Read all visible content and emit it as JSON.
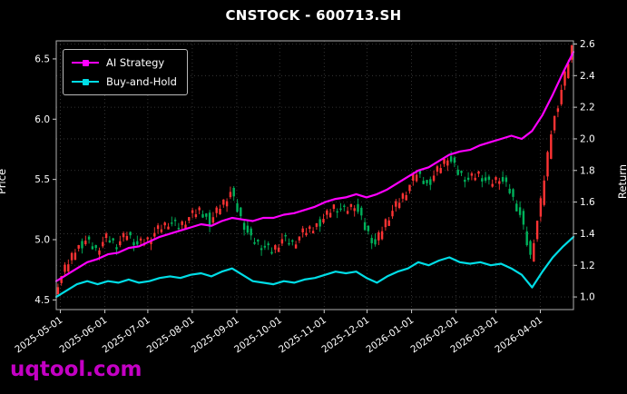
{
  "watermark": "uqtool.com",
  "watermark_color": "#c400c4",
  "axis_labels": {
    "left": "Price",
    "right": "Return"
  },
  "legend": [
    {
      "label": "AI Strategy",
      "color": "#ff00ff"
    },
    {
      "label": "Buy-and-Hold",
      "color": "#00dde6"
    }
  ],
  "chart_data": {
    "type": "line",
    "subtype": "candlestick_price_with_return_lines_overlay",
    "title": "CNSTOCK - 600713.SH",
    "xlabel": "",
    "ylabel_left": "Price",
    "ylabel_right": "Return",
    "ylim_left": [
      4.42,
      6.65
    ],
    "ylim_right": [
      0.92,
      2.62
    ],
    "left_ticks": [
      4.5,
      5.0,
      5.5,
      6.0,
      6.5
    ],
    "right_ticks": [
      1.0,
      1.2,
      1.4,
      1.6,
      1.8,
      2.0,
      2.2,
      2.4,
      2.6
    ],
    "grid": true,
    "grid_color": "#3f3f3f",
    "background": "#000000",
    "legend_position": "upper left",
    "x_ticks": [
      {
        "label": "2025-05-01",
        "pos": 0.008
      },
      {
        "label": "2025-06-01",
        "pos": 0.094
      },
      {
        "label": "2025-07-01",
        "pos": 0.177
      },
      {
        "label": "2025-08-01",
        "pos": 0.263
      },
      {
        "label": "2025-09-01",
        "pos": 0.349
      },
      {
        "label": "2025-10-01",
        "pos": 0.432
      },
      {
        "label": "2025-11-01",
        "pos": 0.518
      },
      {
        "label": "2025-12-01",
        "pos": 0.601
      },
      {
        "label": "2026-01-01",
        "pos": 0.687
      },
      {
        "label": "2026-02-01",
        "pos": 0.773
      },
      {
        "label": "2026-03-01",
        "pos": 0.85
      },
      {
        "label": "2026-04-01",
        "pos": 0.936
      }
    ],
    "candles": {
      "note": "daily OHLC candlesticks; values approximated by weekly close samples read from plot",
      "up_color": "#ff3334",
      "down_color": "#00b25b",
      "weekly_close": [
        4.58,
        4.75,
        4.92,
        5.0,
        4.92,
        5.02,
        4.96,
        5.05,
        4.96,
        5.0,
        5.08,
        5.14,
        5.1,
        5.18,
        5.24,
        5.15,
        5.28,
        5.4,
        5.18,
        5.0,
        4.95,
        4.9,
        5.0,
        4.96,
        5.05,
        5.1,
        5.18,
        5.28,
        5.24,
        5.3,
        5.1,
        4.96,
        5.15,
        5.28,
        5.4,
        5.55,
        5.46,
        5.58,
        5.7,
        5.56,
        5.5,
        5.55,
        5.46,
        5.52,
        5.4,
        5.2,
        4.85,
        5.3,
        5.9,
        6.25,
        6.6
      ]
    },
    "series": [
      {
        "name": "AI Strategy",
        "axis": "right",
        "color": "#ff00ff",
        "values": [
          1.1,
          1.14,
          1.18,
          1.22,
          1.24,
          1.27,
          1.28,
          1.31,
          1.32,
          1.35,
          1.38,
          1.4,
          1.42,
          1.44,
          1.46,
          1.45,
          1.48,
          1.5,
          1.49,
          1.48,
          1.5,
          1.5,
          1.52,
          1.53,
          1.55,
          1.57,
          1.6,
          1.62,
          1.63,
          1.65,
          1.63,
          1.65,
          1.68,
          1.72,
          1.76,
          1.8,
          1.82,
          1.86,
          1.9,
          1.92,
          1.93,
          1.96,
          1.98,
          2.0,
          2.02,
          2.0,
          2.05,
          2.15,
          2.28,
          2.42,
          2.55
        ]
      },
      {
        "name": "Buy-and-Hold",
        "axis": "right",
        "color": "#00dde6",
        "values": [
          1.0,
          1.04,
          1.08,
          1.1,
          1.08,
          1.1,
          1.09,
          1.11,
          1.09,
          1.1,
          1.12,
          1.13,
          1.12,
          1.14,
          1.15,
          1.13,
          1.16,
          1.18,
          1.14,
          1.1,
          1.09,
          1.08,
          1.1,
          1.09,
          1.11,
          1.12,
          1.14,
          1.16,
          1.15,
          1.16,
          1.12,
          1.09,
          1.13,
          1.16,
          1.18,
          1.22,
          1.2,
          1.23,
          1.25,
          1.22,
          1.21,
          1.22,
          1.2,
          1.21,
          1.18,
          1.14,
          1.06,
          1.16,
          1.25,
          1.32,
          1.38
        ]
      }
    ]
  }
}
